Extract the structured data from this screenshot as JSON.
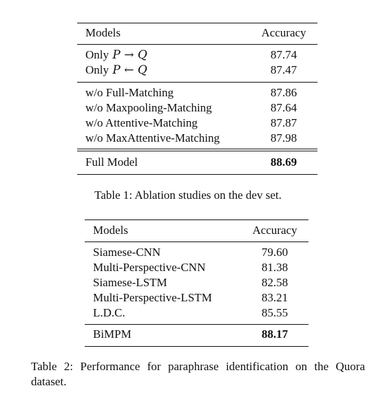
{
  "table1": {
    "headers": {
      "model": "Models",
      "accuracy": "Accuracy"
    },
    "group1": [
      {
        "prefix": "Only",
        "var1": "P",
        "arrow": "→",
        "var2": "Q",
        "accuracy": "87.74"
      },
      {
        "prefix": "Only",
        "var1": "P",
        "arrow": "←",
        "var2": "Q",
        "accuracy": "87.47"
      }
    ],
    "group2": [
      {
        "model": "w/o Full-Matching",
        "accuracy": "87.86"
      },
      {
        "model": "w/o Maxpooling-Matching",
        "accuracy": "87.64"
      },
      {
        "model": "w/o Attentive-Matching",
        "accuracy": "87.87"
      },
      {
        "model": "w/o MaxAttentive-Matching",
        "accuracy": "87.98"
      }
    ],
    "final": {
      "model": "Full Model",
      "accuracy": "88.69"
    },
    "caption": "Table 1: Ablation studies on the dev set."
  },
  "table2": {
    "headers": {
      "model": "Models",
      "accuracy": "Accuracy"
    },
    "rows": [
      {
        "model": "Siamese-CNN",
        "accuracy": "79.60"
      },
      {
        "model": "Multi-Perspective-CNN",
        "accuracy": "81.38"
      },
      {
        "model": "Siamese-LSTM",
        "accuracy": "82.58"
      },
      {
        "model": "Multi-Perspective-LSTM",
        "accuracy": "83.21"
      },
      {
        "model": "L.D.C.",
        "accuracy": "85.55"
      }
    ],
    "final": {
      "model": "BiMPM",
      "accuracy": "88.17"
    },
    "caption": "Table 2: Performance for paraphrase identification on the Quora dataset."
  }
}
